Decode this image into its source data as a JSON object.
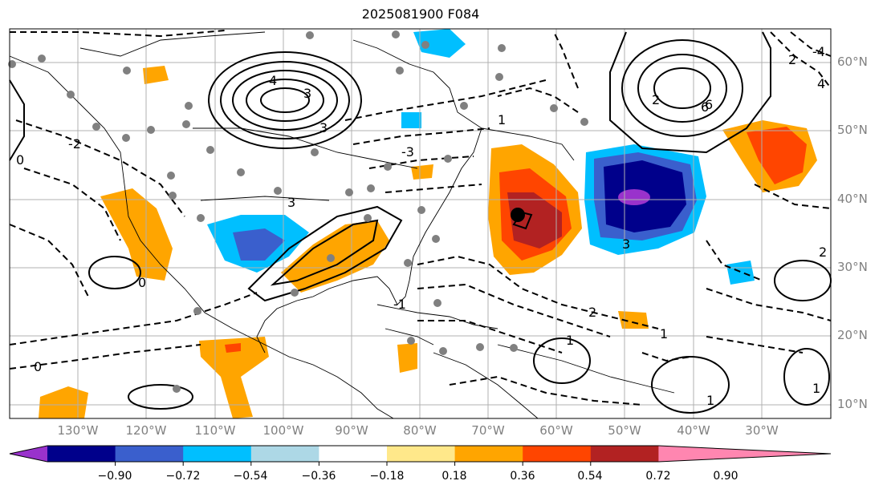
{
  "title": "2025081900 F084",
  "lat_labels": [
    "60°N",
    "50°N",
    "40°N",
    "30°N",
    "20°N",
    "10°N"
  ],
  "lon_labels": [
    "130°W",
    "120°W",
    "110°W",
    "100°W",
    "90°W",
    "80°W",
    "70°W",
    "60°W",
    "50°W",
    "40°W",
    "30°W"
  ],
  "colorbar": {
    "ticks": [
      "−0.90",
      "−0.72",
      "−0.54",
      "−0.36",
      "−0.18",
      "0.18",
      "0.36",
      "0.54",
      "0.72",
      "0.90"
    ],
    "colors": [
      "#9932cc",
      "#00008b",
      "#3a5fcd",
      "#00bfff",
      "#add8e6",
      "#ffffff",
      "#ffe88a",
      "#ffa500",
      "#ff4500",
      "#b22222",
      "#ff86b0"
    ]
  },
  "contour_labels": [
    "4",
    "6",
    "3",
    "2",
    "1",
    "0",
    "-3",
    "-2",
    "-1",
    "-4",
    "2",
    "1",
    "0",
    "3",
    "4",
    "1",
    "1",
    "0",
    "3",
    "2",
    "1",
    "6",
    "3",
    "2"
  ]
}
